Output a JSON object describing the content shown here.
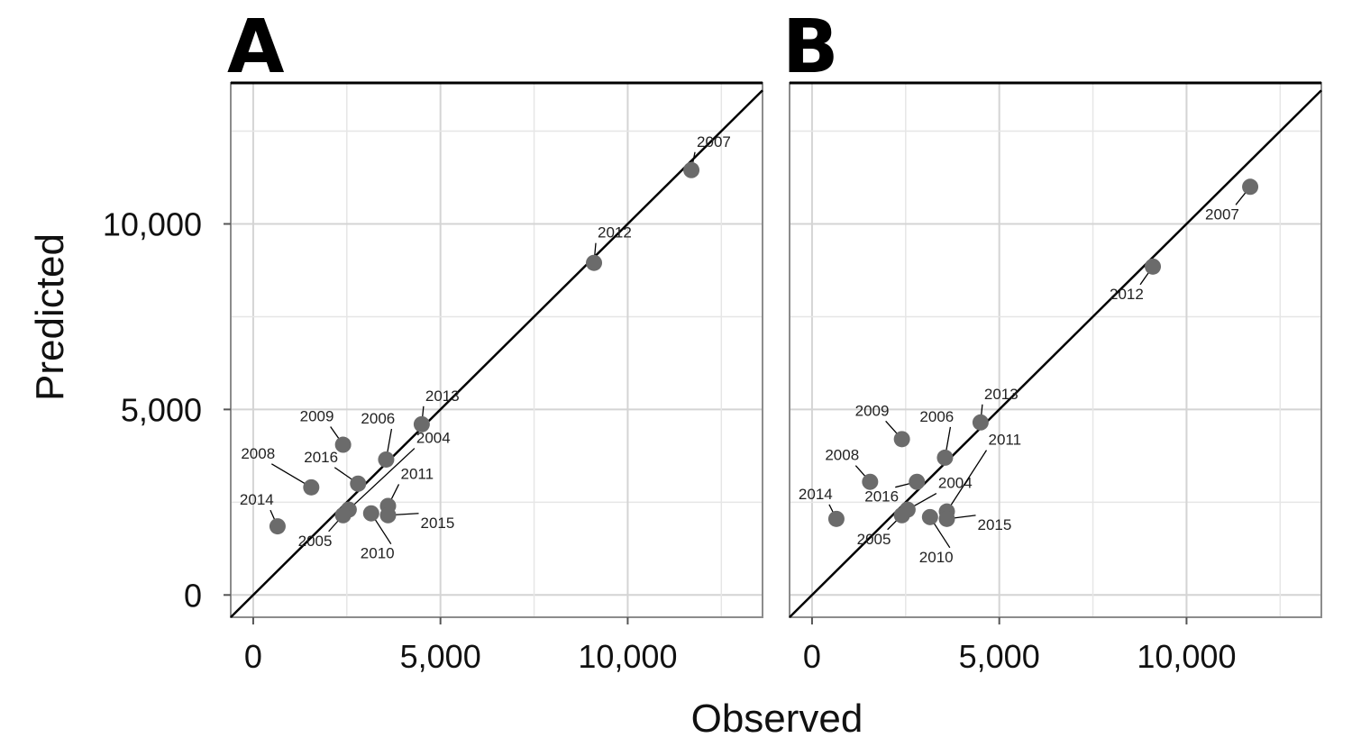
{
  "figure": {
    "xlabel": "Observed",
    "ylabel": "Predicted"
  },
  "chart_data": [
    {
      "type": "scatter",
      "panel": "A",
      "xlabel": "Observed",
      "ylabel": "Predicted",
      "xlim": [
        -600,
        13600
      ],
      "ylim": [
        -600,
        13800
      ],
      "x_ticks": [
        "0",
        "5,000",
        "10,000"
      ],
      "y_ticks": [
        "0",
        "5,000",
        "10,000"
      ],
      "grid": true,
      "reference_line": "y = x",
      "points": [
        {
          "label": "2004",
          "x": 2550,
          "y": 2300
        },
        {
          "label": "2005",
          "x": 2400,
          "y": 2150
        },
        {
          "label": "2006",
          "x": 3550,
          "y": 3650
        },
        {
          "label": "2007",
          "x": 11700,
          "y": 11450
        },
        {
          "label": "2008",
          "x": 1550,
          "y": 2900
        },
        {
          "label": "2009",
          "x": 2400,
          "y": 4050
        },
        {
          "label": "2010",
          "x": 3150,
          "y": 2200
        },
        {
          "label": "2011",
          "x": 3600,
          "y": 2400
        },
        {
          "label": "2012",
          "x": 9100,
          "y": 8950
        },
        {
          "label": "2013",
          "x": 4500,
          "y": 4600
        },
        {
          "label": "2014",
          "x": 650,
          "y": 1850
        },
        {
          "label": "2015",
          "x": 3600,
          "y": 2150
        },
        {
          "label": "2016",
          "x": 2800,
          "y": 3000
        }
      ]
    },
    {
      "type": "scatter",
      "panel": "B",
      "xlabel": "Observed",
      "ylabel": "Predicted",
      "xlim": [
        -600,
        13600
      ],
      "ylim": [
        -600,
        13800
      ],
      "x_ticks": [
        "0",
        "5,000",
        "10,000"
      ],
      "y_ticks": [
        "0",
        "5,000",
        "10,000"
      ],
      "grid": true,
      "reference_line": "y = x",
      "points": [
        {
          "label": "2004",
          "x": 2550,
          "y": 2300
        },
        {
          "label": "2005",
          "x": 2400,
          "y": 2150
        },
        {
          "label": "2006",
          "x": 3550,
          "y": 3700
        },
        {
          "label": "2007",
          "x": 11700,
          "y": 11000
        },
        {
          "label": "2008",
          "x": 1550,
          "y": 3050
        },
        {
          "label": "2009",
          "x": 2400,
          "y": 4200
        },
        {
          "label": "2010",
          "x": 3150,
          "y": 2100
        },
        {
          "label": "2011",
          "x": 3600,
          "y": 2250
        },
        {
          "label": "2012",
          "x": 9100,
          "y": 8850
        },
        {
          "label": "2013",
          "x": 4500,
          "y": 4650
        },
        {
          "label": "2014",
          "x": 650,
          "y": 2050
        },
        {
          "label": "2015",
          "x": 3600,
          "y": 2050
        },
        {
          "label": "2016",
          "x": 2800,
          "y": 3050
        }
      ]
    }
  ]
}
